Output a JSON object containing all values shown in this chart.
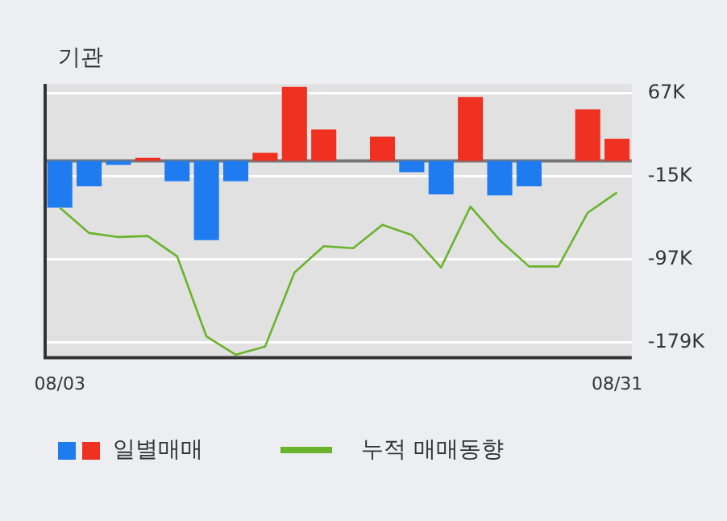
{
  "chart_data": {
    "type": "bar",
    "title": "기관",
    "categories": [
      "08/03",
      null,
      null,
      null,
      null,
      null,
      null,
      null,
      null,
      null,
      null,
      null,
      null,
      null,
      null,
      null,
      null,
      null,
      null,
      "08/31"
    ],
    "series": [
      {
        "name": "일별매매",
        "colors": [
          "#1e7cf0",
          "#1e7cf0",
          "#1e7cf0",
          "#f03020",
          "#1e7cf0",
          "#1e7cf0",
          "#1e7cf0",
          "#f03020",
          "#f03020",
          "#f03020",
          "#f03020",
          "#f03020",
          "#1e7cf0",
          "#1e7cf0",
          "#f03020",
          "#1e7cf0",
          "#1e7cf0",
          "#f03020",
          "#f03020",
          "#f03020"
        ],
        "values": [
          -46000,
          -25000,
          -4000,
          3000,
          -20000,
          -78000,
          -20000,
          8000,
          73000,
          31000,
          0,
          24000,
          -11000,
          -33000,
          63000,
          -34000,
          -25000,
          0,
          51000,
          22000
        ]
      },
      {
        "name": "누적 매매동향",
        "type": "line",
        "color": "#6ab42d",
        "values": [
          -46000,
          -71000,
          -75000,
          -74000,
          -94000,
          -173000,
          -191000,
          -183000,
          -110000,
          -84000,
          -86000,
          -63000,
          -73000,
          -105000,
          -45000,
          -78000,
          -104000,
          -104000,
          -51000,
          -31000
        ]
      }
    ],
    "ylim": [
      -194000,
      76000
    ],
    "yticks": [
      {
        "value": 67000,
        "label": "67K"
      },
      {
        "value": -15000,
        "label": "-15K"
      },
      {
        "value": -97000,
        "label": "-97K"
      },
      {
        "value": -179000,
        "label": "-179K"
      }
    ],
    "ref_lines": [
      {
        "axis": "y",
        "value": 0,
        "color": "#777777"
      }
    ],
    "grid": "y",
    "legend": "bottom",
    "marker": "none",
    "line_style": "solid"
  }
}
